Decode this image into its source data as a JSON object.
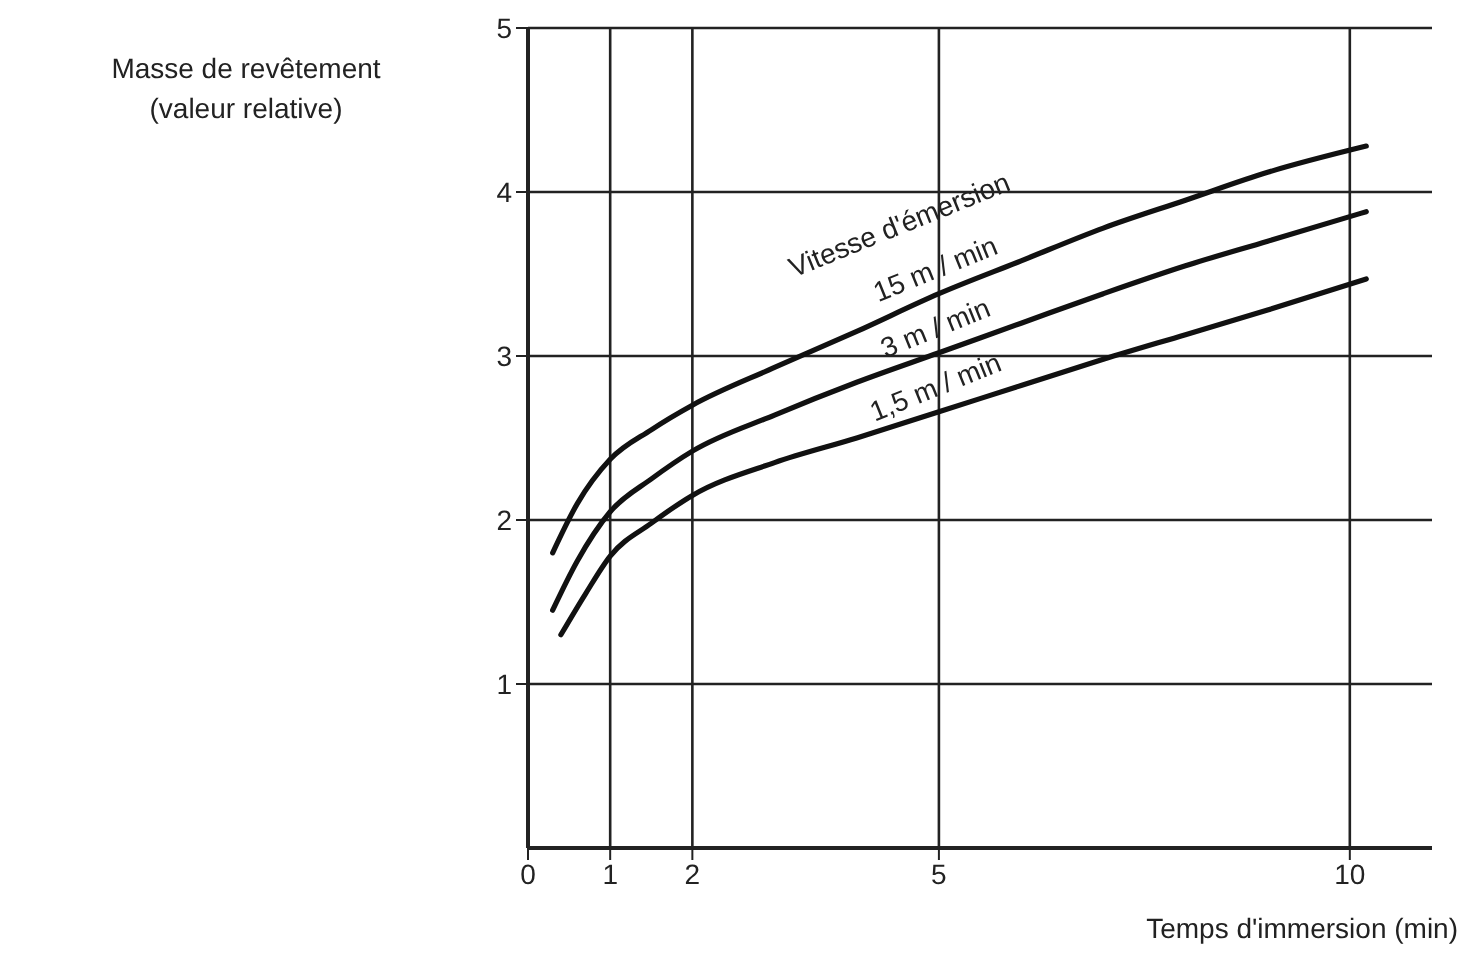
{
  "chart_data": {
    "type": "line",
    "ylabel": "Masse de revêtement\n(valeur relative)",
    "xlabel": "Temps d'immersion (min)",
    "legend_title": "Vitesse d'émersion",
    "xlim": [
      0,
      11
    ],
    "xticks": [
      0,
      1,
      2,
      5,
      10
    ],
    "ylim": [
      0,
      5
    ],
    "yticks": [
      1,
      2,
      3,
      4,
      5
    ],
    "grid": true,
    "legend": false,
    "marker": "none",
    "line_style": "solid",
    "series": [
      {
        "name": "15 m / min",
        "color": "#111111",
        "x": [
          0.3,
          0.6,
          1,
          1.5,
          2,
          3,
          4,
          5,
          6,
          7,
          8,
          9,
          10.2
        ],
        "values": [
          1.8,
          2.1,
          2.37,
          2.55,
          2.7,
          2.93,
          3.15,
          3.38,
          3.58,
          3.78,
          3.95,
          4.12,
          4.28
        ]
      },
      {
        "name": "3 m / min",
        "color": "#111111",
        "x": [
          0.3,
          0.6,
          1,
          1.5,
          2,
          3,
          4,
          5,
          6,
          7,
          8,
          9,
          10.2
        ],
        "values": [
          1.45,
          1.75,
          2.05,
          2.25,
          2.42,
          2.64,
          2.84,
          3.02,
          3.2,
          3.38,
          3.55,
          3.7,
          3.88
        ]
      },
      {
        "name": "1,5 m / min",
        "color": "#111111",
        "x": [
          0.4,
          0.7,
          1,
          1.5,
          2,
          3,
          4,
          5,
          6,
          7,
          8,
          9,
          10.2
        ],
        "values": [
          1.3,
          1.55,
          1.78,
          1.98,
          2.15,
          2.35,
          2.5,
          2.66,
          2.82,
          2.98,
          3.13,
          3.28,
          3.47
        ]
      }
    ]
  }
}
